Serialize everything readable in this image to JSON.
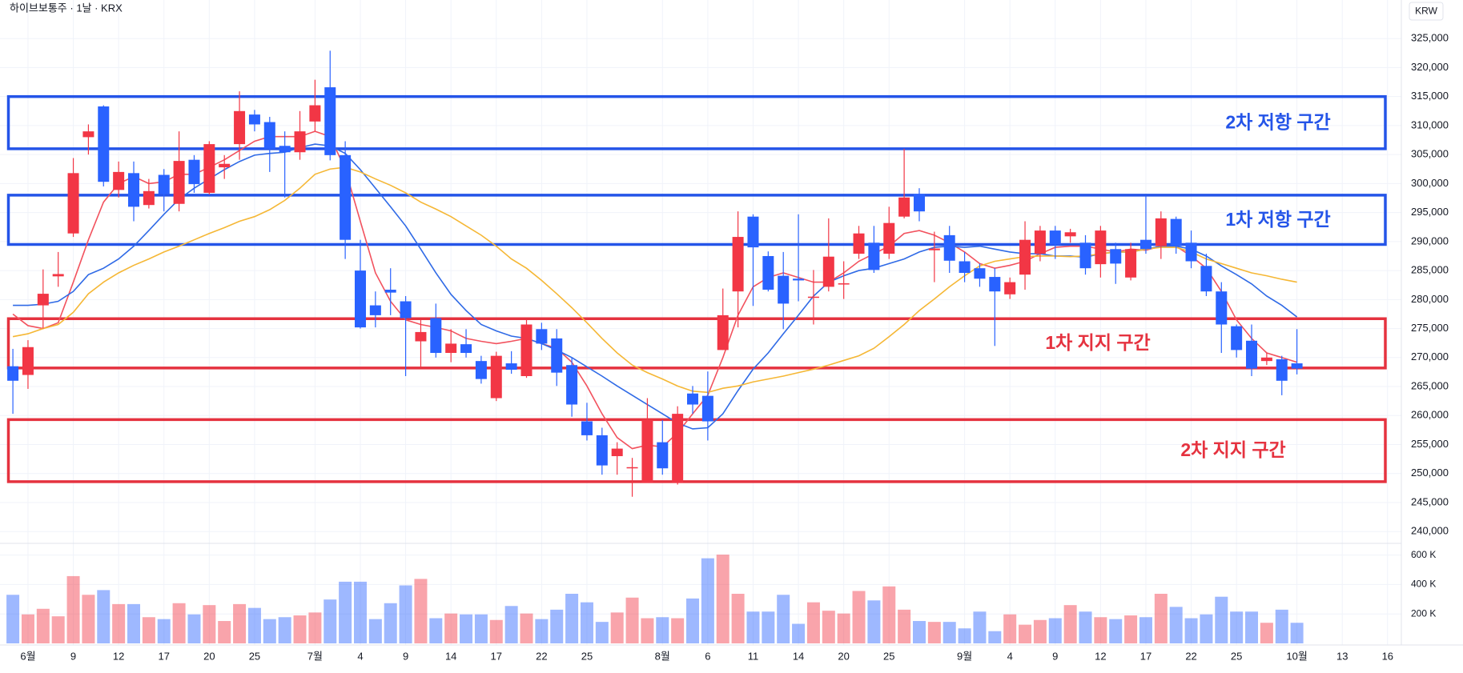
{
  "chart_data": {
    "type": "candlestick",
    "title": "하이브보통주 · 1날 · KRX",
    "currency_button": "KRW",
    "categories": [
      null,
      "6월",
      null,
      null,
      "9",
      null,
      null,
      "12",
      null,
      null,
      "17",
      null,
      null,
      "20",
      null,
      null,
      "25",
      null,
      null,
      null,
      "7월",
      null,
      null,
      "4",
      null,
      null,
      "9",
      null,
      null,
      "14",
      null,
      null,
      "17",
      null,
      null,
      "22",
      null,
      null,
      "25",
      null,
      null,
      null,
      null,
      "8월",
      null,
      null,
      "6",
      null,
      null,
      "11",
      null,
      null,
      "14",
      null,
      null,
      "20",
      null,
      null,
      "25",
      null,
      null,
      null,
      null,
      "9월",
      null,
      null,
      "4",
      null,
      null,
      "9",
      null,
      null,
      "12",
      null,
      null,
      "17",
      null,
      null,
      "22",
      null,
      null,
      "25",
      null,
      null,
      null,
      "10월",
      null,
      null,
      "13",
      null,
      null,
      "16"
    ],
    "open": [
      268500,
      267000,
      279000,
      284000,
      291400,
      308000,
      313300,
      298900,
      301800,
      296300,
      301500,
      296500,
      304100,
      298400,
      302800,
      306800,
      311900,
      310600,
      306500,
      305400,
      310700,
      316600,
      304900,
      285000,
      279000,
      281700,
      279700,
      272800,
      276800,
      270800,
      272300,
      269400,
      263000,
      269000,
      266800,
      274900,
      273300,
      268700,
      259000,
      256600,
      253000,
      250900,
      248400,
      255400,
      248400,
      263800,
      263400,
      271300,
      281400,
      294300,
      287500,
      284100,
      283600,
      280300,
      282200,
      282600,
      287900,
      289800,
      287900,
      294300,
      298200,
      288500,
      291100,
      286600,
      285400,
      283900,
      280900,
      284300,
      287900,
      291900,
      290900,
      289800,
      286100,
      288700,
      283800,
      290300,
      289200,
      293900,
      289800,
      285800,
      281400,
      275400,
      272900,
      269400,
      269700,
      269000,
      null,
      null,
      null,
      null,
      null,
      null
    ],
    "high": [
      271500,
      273000,
      285200,
      288200,
      304400,
      310200,
      313500,
      303800,
      303800,
      300800,
      302500,
      309000,
      304900,
      307300,
      304900,
      315900,
      312700,
      311500,
      309000,
      312500,
      317900,
      322900,
      307300,
      290300,
      281400,
      285400,
      280600,
      276500,
      279300,
      274900,
      274900,
      270300,
      271000,
      271100,
      276500,
      276000,
      274900,
      270000,
      262200,
      257900,
      255400,
      252700,
      263000,
      259200,
      261600,
      265100,
      267600,
      281900,
      295200,
      294700,
      288300,
      288200,
      294700,
      285100,
      294000,
      286600,
      292700,
      292700,
      296000,
      306000,
      299200,
      291700,
      292700,
      288200,
      286200,
      285400,
      283800,
      293500,
      292700,
      292700,
      292200,
      291100,
      292700,
      289800,
      289800,
      297900,
      295200,
      294300,
      291900,
      287900,
      283000,
      275700,
      275700,
      270800,
      270300,
      274900,
      null,
      null,
      null,
      null,
      null,
      null
    ],
    "low": [
      260300,
      264600,
      275000,
      282200,
      290800,
      305000,
      299500,
      297600,
      293500,
      295700,
      295200,
      295200,
      298400,
      298100,
      300800,
      304100,
      309000,
      302000,
      297600,
      304100,
      309000,
      304000,
      287000,
      275000,
      275200,
      277300,
      266800,
      268400,
      270000,
      269200,
      270000,
      265500,
      262500,
      267200,
      266500,
      271300,
      265100,
      259800,
      255700,
      249800,
      249800,
      246000,
      248400,
      249800,
      248100,
      260300,
      255700,
      271300,
      275200,
      278900,
      281400,
      274900,
      279700,
      275700,
      281400,
      280100,
      287000,
      284600,
      287000,
      294000,
      293500,
      283000,
      284600,
      283000,
      282200,
      272000,
      280100,
      281700,
      286600,
      287000,
      289800,
      284300,
      283800,
      282700,
      283300,
      287900,
      287000,
      287900,
      285400,
      280600,
      270800,
      270000,
      266800,
      268700,
      263500,
      267100,
      null,
      null,
      null,
      null,
      null,
      null
    ],
    "close": [
      266000,
      271800,
      281000,
      284400,
      301800,
      309000,
      300300,
      302000,
      296000,
      298700,
      298200,
      303900,
      299900,
      306800,
      303400,
      312500,
      310200,
      306000,
      305400,
      309000,
      313500,
      304900,
      290300,
      275200,
      277300,
      281200,
      276800,
      274400,
      270800,
      272400,
      270800,
      266300,
      270300,
      267900,
      275700,
      272400,
      267400,
      261900,
      256600,
      251400,
      254300,
      251100,
      259300,
      250900,
      260300,
      261900,
      259000,
      277300,
      290800,
      289000,
      281700,
      279300,
      283300,
      280500,
      287400,
      282800,
      291400,
      285100,
      293200,
      297600,
      295200,
      288800,
      286700,
      284600,
      283600,
      281400,
      283000,
      290300,
      291900,
      289500,
      291600,
      285400,
      291900,
      286200,
      288700,
      288700,
      294000,
      289200,
      286600,
      281400,
      275700,
      271300,
      268100,
      270000,
      266000,
      268100,
      null,
      null,
      null,
      null,
      null,
      null
    ],
    "volume": [
      330000,
      197000,
      235000,
      184000,
      457000,
      330000,
      362000,
      267000,
      267000,
      178000,
      165000,
      273000,
      197000,
      260000,
      152000,
      267000,
      241000,
      165000,
      178000,
      190000,
      210000,
      298000,
      419000,
      419000,
      165000,
      273000,
      394000,
      438000,
      171000,
      203000,
      197000,
      197000,
      159000,
      254000,
      203000,
      165000,
      229000,
      337000,
      279000,
      146000,
      210000,
      311000,
      171000,
      178000,
      171000,
      305000,
      578000,
      603000,
      337000,
      216000,
      216000,
      330000,
      133000,
      279000,
      222000,
      203000,
      356000,
      292000,
      387000,
      229000,
      152000,
      146000,
      146000,
      102000,
      216000,
      83000,
      197000,
      127000,
      159000,
      171000,
      260000,
      216000,
      178000,
      165000,
      190000,
      178000,
      337000,
      248000,
      171000,
      197000,
      317000,
      216000,
      216000,
      140000,
      229000,
      140000,
      null,
      null,
      null,
      null,
      null,
      null
    ],
    "up_color": "#f23645",
    "down_color": "#2962ff",
    "moving_averages": [
      {
        "color": "#f2525e",
        "values": [
          277500,
          275500,
          275000,
          276000,
          283000,
          290300,
          296800,
          300000,
          301200,
          300000,
          300300,
          301600,
          301600,
          302800,
          304100,
          305700,
          307300,
          308100,
          308100,
          308100,
          309000,
          308100,
          302500,
          293500,
          284600,
          279700,
          276500,
          275700,
          275200,
          274600,
          273300,
          272800,
          272400,
          272800,
          273300,
          272400,
          271600,
          269200,
          265100,
          260300,
          256200,
          254300,
          254900,
          254600,
          257000,
          260300,
          263500,
          270000,
          277300,
          282200,
          283800,
          284600,
          283800,
          283000,
          283000,
          284600,
          286600,
          287900,
          289200,
          291400,
          291900,
          291100,
          289800,
          288200,
          286200,
          285400,
          285900,
          286600,
          287900,
          289000,
          289200,
          289200,
          288700,
          288200,
          288700,
          288500,
          289200,
          289200,
          287500,
          285400,
          281400,
          276500,
          273300,
          270800,
          270000,
          269200,
          null,
          null,
          null,
          null,
          null,
          null
        ]
      },
      {
        "color": "#2f6ae6",
        "values": [
          279000,
          279000,
          279200,
          279700,
          281400,
          284300,
          285400,
          287000,
          289200,
          291900,
          294700,
          297300,
          299200,
          300800,
          302400,
          303800,
          304900,
          305200,
          305400,
          306200,
          306800,
          306500,
          305200,
          302400,
          299200,
          296000,
          292700,
          288700,
          284600,
          280900,
          278100,
          275700,
          274600,
          273700,
          273300,
          272400,
          271300,
          270000,
          268400,
          266800,
          265100,
          263500,
          261900,
          260300,
          258700,
          257700,
          257900,
          260300,
          264300,
          268000,
          270800,
          274100,
          277300,
          280600,
          283000,
          284100,
          285000,
          285400,
          286200,
          287000,
          288200,
          289000,
          289200,
          289000,
          289200,
          288700,
          288200,
          287900,
          287900,
          287500,
          287500,
          287300,
          287900,
          288200,
          288200,
          288700,
          289200,
          289200,
          288700,
          287500,
          285800,
          284300,
          282700,
          280600,
          279000,
          277000,
          null,
          null,
          null,
          null,
          null,
          null
        ]
      },
      {
        "color": "#f5b735",
        "values": [
          273600,
          274100,
          275000,
          275700,
          277800,
          281000,
          283000,
          284600,
          285900,
          287000,
          288200,
          289200,
          290300,
          291400,
          292400,
          293500,
          294300,
          295500,
          297100,
          299200,
          301600,
          302500,
          302800,
          302000,
          300800,
          299700,
          298400,
          296800,
          295600,
          294300,
          292700,
          291100,
          289200,
          287000,
          285400,
          283300,
          281000,
          278600,
          276000,
          273300,
          270800,
          268700,
          267400,
          266300,
          265100,
          264200,
          264000,
          264700,
          265100,
          265800,
          266300,
          266800,
          267400,
          268000,
          268700,
          269500,
          270300,
          271600,
          273600,
          275700,
          278100,
          280100,
          282200,
          284100,
          285800,
          286600,
          287000,
          287400,
          287500,
          287500,
          287400,
          287500,
          287900,
          288200,
          288200,
          288700,
          289000,
          289000,
          288200,
          287000,
          286200,
          285400,
          284600,
          284100,
          283500,
          283000,
          null,
          null,
          null,
          null,
          null,
          null
        ]
      }
    ],
    "zones": [
      {
        "label": "2차 저항 구간",
        "low": 306000,
        "high": 315000,
        "color": "#2454e8"
      },
      {
        "label": "1차 저항 구간",
        "low": 289500,
        "high": 298000,
        "color": "#2454e8"
      },
      {
        "label": "1차 지지 구간",
        "low": 268200,
        "high": 276700,
        "color": "#e5323f"
      },
      {
        "label": "2차 지지 구간",
        "low": 248600,
        "high": 259300,
        "color": "#e5323f"
      }
    ],
    "ylim": [
      238100,
      331650
    ],
    "yticks": [
      {
        "value": 240000,
        "label": "240,000"
      },
      {
        "value": 245000,
        "label": "245,000"
      },
      {
        "value": 250000,
        "label": "250,000"
      },
      {
        "value": 255000,
        "label": "255,000"
      },
      {
        "value": 260000,
        "label": "260,000"
      },
      {
        "value": 265000,
        "label": "265,000"
      },
      {
        "value": 270000,
        "label": "270,000"
      },
      {
        "value": 275000,
        "label": "275,000"
      },
      {
        "value": 280000,
        "label": "280,000"
      },
      {
        "value": 285000,
        "label": "285,000"
      },
      {
        "value": 290000,
        "label": "290,000"
      },
      {
        "value": 295000,
        "label": "295,000"
      },
      {
        "value": 300000,
        "label": "300,000"
      },
      {
        "value": 305000,
        "label": "305,000"
      },
      {
        "value": 310000,
        "label": "310,000"
      },
      {
        "value": 315000,
        "label": "315,000"
      },
      {
        "value": 320000,
        "label": "320,000"
      },
      {
        "value": 325000,
        "label": "325,000"
      }
    ],
    "vlim": [
      0,
      674000
    ],
    "vticks": [
      {
        "value": 200000,
        "label": "200 K"
      },
      {
        "value": 400000,
        "label": "400 K"
      },
      {
        "value": 600000,
        "label": "600 K"
      }
    ],
    "grid": true
  }
}
